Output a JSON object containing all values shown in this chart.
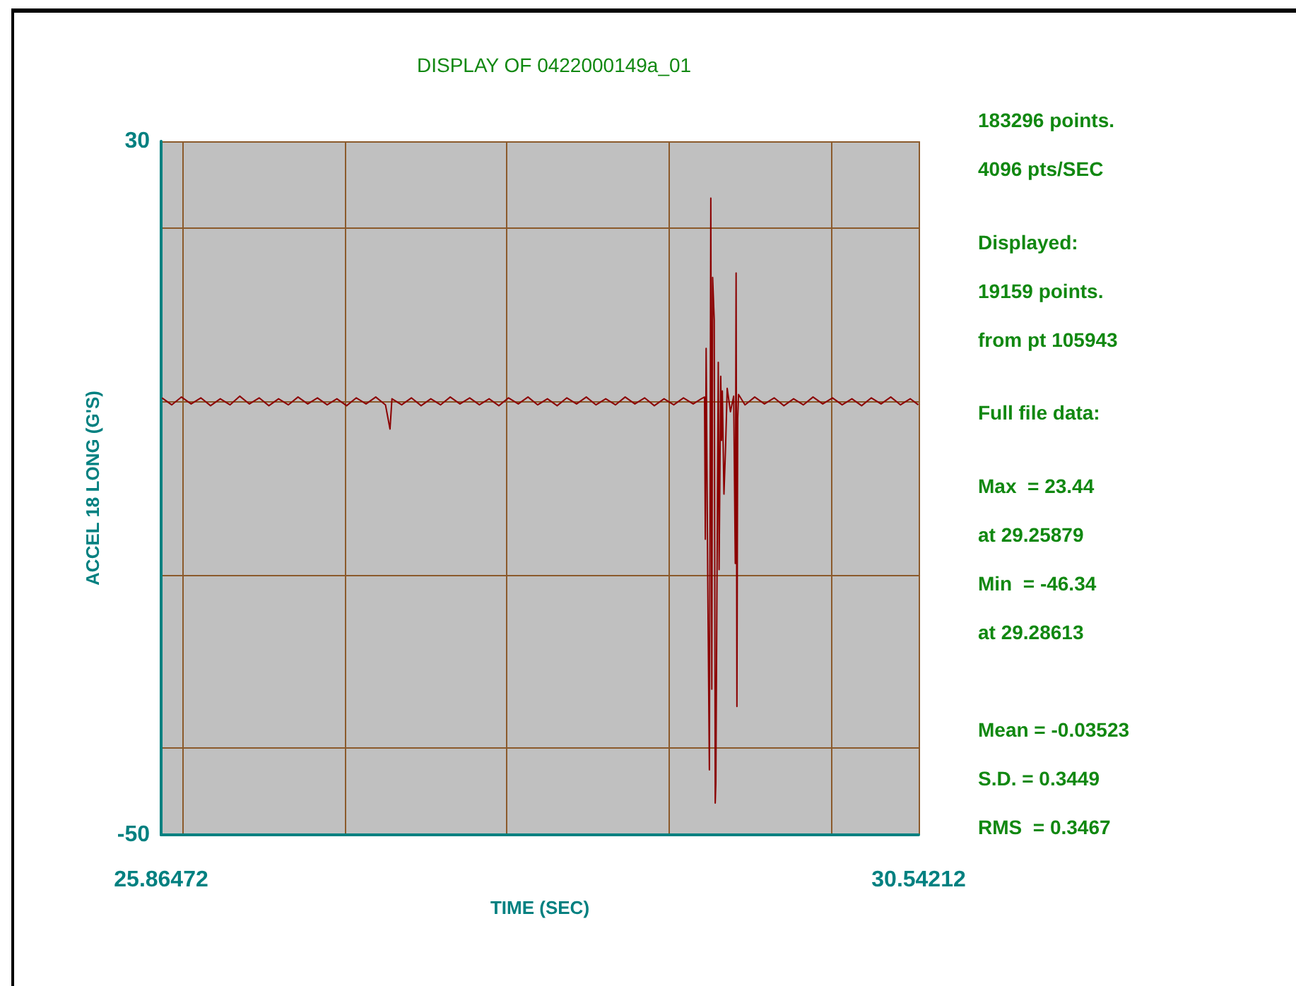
{
  "chart_data": {
    "type": "line",
    "title": "DISPLAY OF 0422000149a_01",
    "xlabel": "TIME (SEC)",
    "ylabel": "ACCEL 18 LONG (G'S)",
    "annotations": [
      "183296 points.",
      "4096 pts/SEC",
      "Displayed:",
      "19159 points.",
      "from pt 105943",
      "Full file data:",
      "Max  = 23.44",
      "at 29.25879",
      "Min  = -46.34",
      "at 29.28613",
      "Mean = -0.03523",
      "S.D. = 0.3449",
      "RMS  = 0.3467"
    ],
    "xlim": [
      25.86472,
      30.54212
    ],
    "ylim": [
      -50,
      30
    ],
    "xticks": [
      25.86472,
      {
        "value": 26,
        "label": null
      },
      {
        "value": 27,
        "label": null
      },
      {
        "value": 28,
        "label": null
      },
      {
        "value": 29,
        "label": null
      },
      {
        "value": 30,
        "label": null
      },
      30.54212
    ],
    "yticks": [
      -50,
      {
        "value": -40,
        "label": null
      },
      {
        "value": -20,
        "label": null
      },
      {
        "value": 0,
        "label": null
      },
      {
        "value": 20,
        "label": null
      },
      30
    ],
    "grid": true,
    "marker": "none",
    "line_style": "solid",
    "series": [
      {
        "color": "#8b0000",
        "x": [
          25.87,
          25.93,
          25.99,
          26.05,
          26.11,
          26.17,
          26.23,
          26.29,
          26.35,
          26.41,
          26.47,
          26.53,
          26.59,
          26.65,
          26.71,
          26.77,
          26.83,
          26.89,
          26.95,
          27.01,
          27.07,
          27.13,
          27.19,
          27.25,
          27.278,
          27.29,
          27.35,
          27.41,
          27.47,
          27.53,
          27.59,
          27.65,
          27.71,
          27.77,
          27.83,
          27.89,
          27.95,
          28.01,
          28.07,
          28.13,
          28.19,
          28.25,
          28.31,
          28.37,
          28.43,
          28.49,
          28.55,
          28.61,
          28.67,
          28.73,
          28.79,
          28.85,
          28.91,
          28.97,
          29.03,
          29.09,
          29.15,
          29.2,
          29.22,
          29.225,
          29.23,
          29.24,
          29.25,
          29.25879,
          29.265,
          29.27,
          29.28,
          29.28613,
          29.29,
          29.3,
          29.305,
          29.31,
          29.32,
          29.325,
          29.33,
          29.34,
          29.35,
          29.36,
          29.38,
          29.4,
          29.41,
          29.415,
          29.42,
          29.425,
          29.43,
          29.47,
          29.53,
          29.59,
          29.65,
          29.71,
          29.77,
          29.83,
          29.89,
          29.95,
          30.01,
          30.07,
          30.13,
          30.19,
          30.25,
          30.31,
          30.37,
          30.43,
          30.49,
          30.54
        ],
        "values": [
          0.4,
          -0.4,
          0.5,
          -0.3,
          0.4,
          -0.5,
          0.3,
          -0.4,
          0.6,
          -0.3,
          0.4,
          -0.5,
          0.3,
          -0.4,
          0.5,
          -0.3,
          0.4,
          -0.4,
          0.3,
          -0.5,
          0.4,
          -0.3,
          0.5,
          -0.4,
          -3.2,
          0.3,
          -0.4,
          0.4,
          -0.5,
          0.3,
          -0.4,
          0.5,
          -0.3,
          0.4,
          -0.4,
          0.3,
          -0.5,
          0.4,
          -0.3,
          0.5,
          -0.4,
          0.3,
          -0.5,
          0.4,
          -0.3,
          0.5,
          -0.4,
          0.3,
          -0.4,
          0.5,
          -0.3,
          0.4,
          -0.5,
          0.3,
          -0.4,
          0.4,
          -0.3,
          0.3,
          0.5,
          -15.9,
          6.1,
          -20.8,
          -42.5,
          23.44,
          -33.2,
          14.3,
          9.4,
          -46.34,
          -44,
          -11,
          4.5,
          -19.4,
          2.9,
          -4.5,
          1.2,
          -10.7,
          -5.3,
          1.5,
          -1.2,
          0.6,
          -18.7,
          14.8,
          -35.2,
          -2,
          0.8,
          -0.4,
          0.5,
          -0.3,
          0.4,
          -0.5,
          0.3,
          -0.4,
          0.5,
          -0.3,
          0.4,
          -0.4,
          0.3,
          -0.5,
          0.4,
          -0.3,
          0.5,
          -0.4,
          0.3,
          -0.4
        ]
      }
    ]
  }
}
